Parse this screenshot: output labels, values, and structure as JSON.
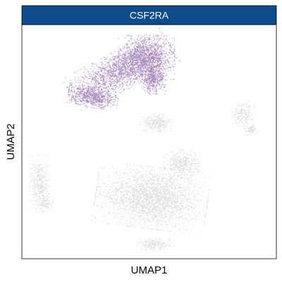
{
  "chart_data": {
    "type": "scatter",
    "title": "CSF2RA",
    "xlabel": "UMAP1",
    "ylabel": "UMAP2",
    "grid": false,
    "legend": "none",
    "axis_ticks": false,
    "x_range": [
      -10,
      10
    ],
    "y_range": [
      -10,
      10
    ],
    "series": [
      {
        "color": "#9F7FB9",
        "expression": "high",
        "clusters": [
          {
            "cx": -2.2,
            "cy": 6.1,
            "rx": 4.0,
            "ry": 1.5,
            "angle": 30,
            "n": 1500
          },
          {
            "cx": -0.2,
            "cy": 7.2,
            "rx": 2.0,
            "ry": 1.7,
            "angle": 0,
            "n": 1100
          },
          {
            "cx": 0.3,
            "cy": 5.3,
            "rx": 0.9,
            "ry": 1.1,
            "angle": 0,
            "n": 450
          },
          {
            "cx": -4.4,
            "cy": 3.8,
            "rx": 1.8,
            "ry": 0.8,
            "angle": -10,
            "n": 650
          }
        ]
      },
      {
        "color": "#D9D9D9",
        "expression": "low",
        "clusters": [
          {
            "cx": 0.2,
            "cy": -4.8,
            "rx": 4.0,
            "ry": 2.4,
            "angle": -8,
            "n": 3200
          },
          {
            "cx": 2.6,
            "cy": -1.9,
            "rx": 1.3,
            "ry": 1.1,
            "angle": 0,
            "n": 500
          },
          {
            "cx": 0.4,
            "cy": -8.8,
            "rx": 1.2,
            "ry": 0.5,
            "angle": 0,
            "n": 250
          },
          {
            "cx": 0.6,
            "cy": 1.6,
            "rx": 1.2,
            "ry": 0.7,
            "angle": 0,
            "n": 350
          },
          {
            "cx": 7.4,
            "cy": 2.4,
            "rx": 0.8,
            "ry": 1.0,
            "angle": 0,
            "n": 250
          },
          {
            "cx": 8.0,
            "cy": 1.0,
            "rx": 0.5,
            "ry": 0.4,
            "angle": 0,
            "n": 90
          },
          {
            "cx": -8.6,
            "cy": -3.6,
            "rx": 0.7,
            "ry": 2.2,
            "angle": 0,
            "n": 450
          },
          {
            "cx": -8.2,
            "cy": -5.3,
            "rx": 0.6,
            "ry": 0.6,
            "angle": 0,
            "n": 120
          }
        ]
      }
    ]
  }
}
